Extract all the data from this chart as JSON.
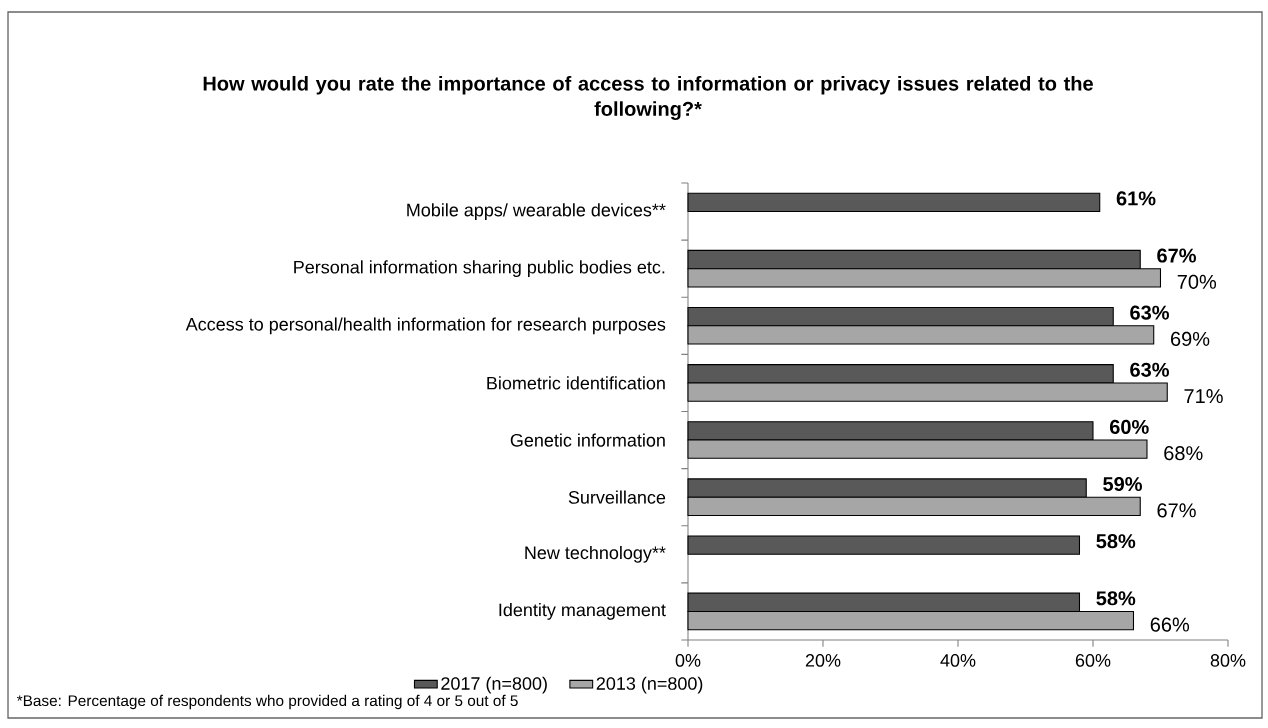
{
  "chart_data": {
    "type": "bar",
    "orientation": "horizontal",
    "title": "How would you rate the importance of access to information or privacy issues related to the following?*",
    "categories": [
      "Mobile apps/ wearable devices**",
      "Personal information sharing public bodies etc.",
      "Access to personal/health information for research purposes",
      "Biometric identification",
      "Genetic information",
      "Surveillance",
      "New technology**",
      "Identity management"
    ],
    "series": [
      {
        "name": "2017 (n=800)",
        "color": "#595959",
        "values": [
          61,
          67,
          63,
          63,
          60,
          59,
          58,
          58
        ],
        "value_labels": [
          "61%",
          "67%",
          "63%",
          "63%",
          "60%",
          "59%",
          "58%",
          "58%"
        ]
      },
      {
        "name": "2013 (n=800)",
        "color": "#a6a6a6",
        "values": [
          null,
          70,
          69,
          71,
          68,
          67,
          null,
          66
        ],
        "value_labels": [
          null,
          "70%",
          "69%",
          "71%",
          "68%",
          "67%",
          null,
          "66%"
        ]
      }
    ],
    "xlim": [
      0,
      80
    ],
    "xticks": [
      {
        "value": 0,
        "label": "0%"
      },
      {
        "value": 20,
        "label": "20%"
      },
      {
        "value": 40,
        "label": "40%"
      },
      {
        "value": 60,
        "label": "60%"
      },
      {
        "value": 80,
        "label": "80%"
      }
    ],
    "legend": "bottom",
    "grid": false,
    "annotations": [
      "*Base: Percentage of respondents who provided a rating of 4 or 5 out of 5"
    ]
  }
}
